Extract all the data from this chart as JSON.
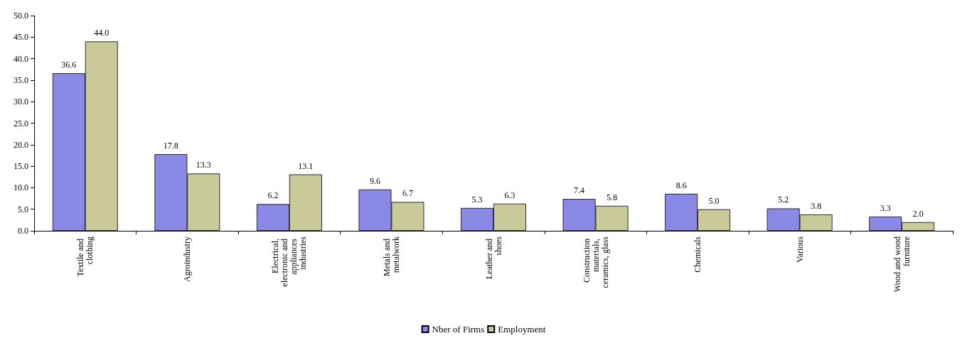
{
  "chart_data": {
    "type": "bar",
    "categories": [
      "Textile and clothing",
      "Agroindustry",
      "Electrical, electronic and appliances industries",
      "Metals and metalwork",
      "Leather and shoes",
      "Construction materials, ceramics, glass",
      "Chemicals",
      "Various",
      "Wood and wood furniture"
    ],
    "series": [
      {
        "name": "Nber of Firms",
        "color": "#8a8ae6",
        "values": [
          36.6,
          17.8,
          6.2,
          9.6,
          5.3,
          7.4,
          8.6,
          5.2,
          3.3
        ],
        "value_labels": [
          "36.6",
          "17.8",
          "6.2",
          "9.6",
          "5.3",
          "7.4",
          "8.6",
          "5.2",
          "3.3"
        ]
      },
      {
        "name": "Employment",
        "color": "#c9c99a",
        "values": [
          44.0,
          13.3,
          13.1,
          6.7,
          6.3,
          5.8,
          5.0,
          3.8,
          2.0
        ],
        "value_labels": [
          "44.0",
          "13.3",
          "13.1",
          "6.7",
          "6.3",
          "5.8",
          "5.0",
          "3.8",
          "2.0"
        ]
      }
    ],
    "ylim": [
      0,
      50
    ],
    "yticks": [
      {
        "value": 0,
        "label": "0.0"
      },
      {
        "value": 5,
        "label": "5.0"
      },
      {
        "value": 10,
        "label": "10.0"
      },
      {
        "value": 15,
        "label": "15.0"
      },
      {
        "value": 20,
        "label": "20.0"
      },
      {
        "value": 25,
        "label": "25.0"
      },
      {
        "value": 30,
        "label": "30.0"
      },
      {
        "value": 35,
        "label": "35.0"
      },
      {
        "value": 40,
        "label": "40.0"
      },
      {
        "value": 45,
        "label": "45.0"
      },
      {
        "value": 50,
        "label": "50.0"
      }
    ],
    "grid": false,
    "legend": "bottom"
  }
}
